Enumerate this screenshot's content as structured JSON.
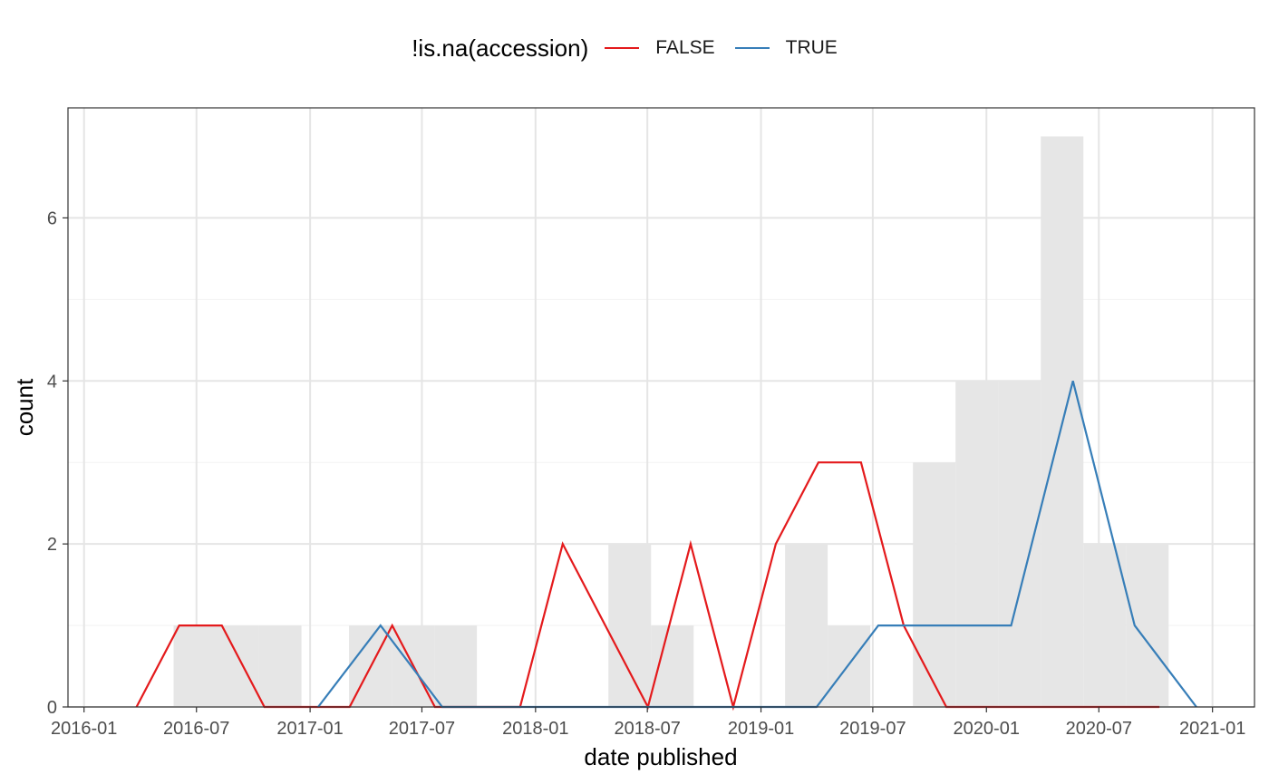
{
  "chart_data": {
    "type": "line",
    "xlabel": "date published",
    "ylabel": "count",
    "x_tick_labels": [
      "2016-01",
      "2016-07",
      "2017-01",
      "2017-07",
      "2018-01",
      "2018-07",
      "2019-01",
      "2019-07",
      "2020-01",
      "2020-07",
      "2021-01"
    ],
    "x_ticks": [
      "2016-01-01",
      "2016-07-01",
      "2017-01-01",
      "2017-07-01",
      "2018-01-01",
      "2018-07-01",
      "2019-01-01",
      "2019-07-01",
      "2020-01-01",
      "2020-07-01",
      "2021-01-01"
    ],
    "xlim": [
      "2015-12-06",
      "2021-03-10"
    ],
    "y_tick_labels": [
      "0",
      "2",
      "4",
      "6"
    ],
    "y_ticks": [
      0,
      2,
      4,
      6
    ],
    "ylim": [
      0,
      7.35
    ],
    "grid": true,
    "legend": {
      "title": "!is.na(accession)",
      "position": "top",
      "entries": [
        {
          "label": "FALSE",
          "color": "#e41a1c"
        },
        {
          "label": "TRUE",
          "color": "#377eb8"
        }
      ]
    },
    "histogram": {
      "fill": "#e6e6e6",
      "bins": [
        {
          "start": "2016-05-25",
          "end": "2016-08-02",
          "count": 1
        },
        {
          "start": "2016-08-02",
          "end": "2016-10-10",
          "count": 1
        },
        {
          "start": "2016-10-10",
          "end": "2016-12-18",
          "count": 1
        },
        {
          "start": "2017-03-05",
          "end": "2017-05-13",
          "count": 1
        },
        {
          "start": "2017-05-13",
          "end": "2017-07-21",
          "count": 1
        },
        {
          "start": "2017-07-21",
          "end": "2017-09-28",
          "count": 1
        },
        {
          "start": "2018-04-29",
          "end": "2018-07-07",
          "count": 2
        },
        {
          "start": "2018-07-07",
          "end": "2018-09-14",
          "count": 1
        },
        {
          "start": "2019-02-09",
          "end": "2019-04-19",
          "count": 2
        },
        {
          "start": "2019-04-19",
          "end": "2019-06-27",
          "count": 1
        },
        {
          "start": "2019-09-04",
          "end": "2019-11-12",
          "count": 3
        },
        {
          "start": "2019-11-12",
          "end": "2020-01-20",
          "count": 4
        },
        {
          "start": "2020-01-20",
          "end": "2020-03-29",
          "count": 4
        },
        {
          "start": "2020-03-29",
          "end": "2020-06-06",
          "count": 7
        },
        {
          "start": "2020-06-06",
          "end": "2020-08-14",
          "count": 2
        },
        {
          "start": "2020-08-14",
          "end": "2020-10-22",
          "count": 2
        }
      ]
    },
    "series": [
      {
        "name": "FALSE",
        "color": "#e41a1c",
        "x": [
          "2016-03-26",
          "2016-06-03",
          "2016-08-11",
          "2016-10-19",
          "2016-12-27",
          "2017-03-06",
          "2017-05-14",
          "2017-07-22",
          "2017-09-29",
          "2017-12-07",
          "2018-02-14",
          "2018-04-24",
          "2018-07-02",
          "2018-09-09",
          "2018-11-17",
          "2019-01-25",
          "2019-04-04",
          "2019-06-12",
          "2019-08-20",
          "2019-10-28",
          "2020-01-05",
          "2020-03-14",
          "2020-05-22",
          "2020-07-30",
          "2020-10-07"
        ],
        "values": [
          0,
          1,
          1,
          0,
          0,
          0,
          1,
          0,
          0,
          0,
          2,
          1,
          0,
          2,
          0,
          2,
          3,
          3,
          1,
          0,
          0,
          0,
          0,
          0,
          0
        ]
      },
      {
        "name": "TRUE",
        "color": "#377eb8",
        "x": [
          "2017-01-14",
          "2017-04-25",
          "2017-08-03",
          "2019-04-01",
          "2019-07-10",
          "2020-02-10",
          "2020-05-20",
          "2020-08-28",
          "2020-12-06"
        ],
        "values": [
          0,
          1,
          0,
          0,
          1,
          1,
          4,
          1,
          0
        ]
      }
    ]
  }
}
